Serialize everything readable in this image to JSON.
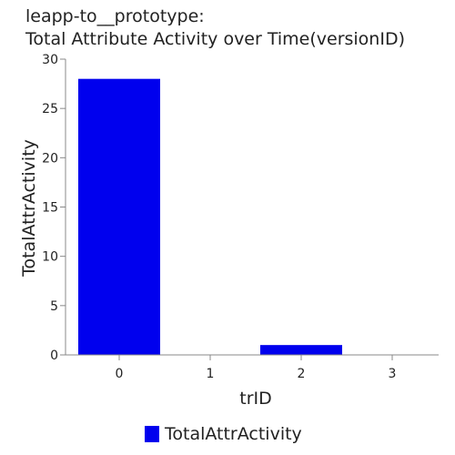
{
  "chart_data": {
    "type": "bar",
    "title_lines": [
      "leapp-to__prototype:",
      "Total Attribute Activity over Time(versionID)"
    ],
    "xlabel": "trID",
    "ylabel": "TotalAttrActivity",
    "categories": [
      "0",
      "1",
      "2",
      "3"
    ],
    "series": [
      {
        "name": "TotalAttrActivity",
        "values": [
          28,
          0,
          1,
          0
        ],
        "color": "#0000ee"
      }
    ],
    "ylim": [
      0,
      30
    ],
    "yticks": [
      0,
      5,
      10,
      15,
      20,
      25,
      30
    ],
    "grid": false,
    "legend": "bottom"
  }
}
